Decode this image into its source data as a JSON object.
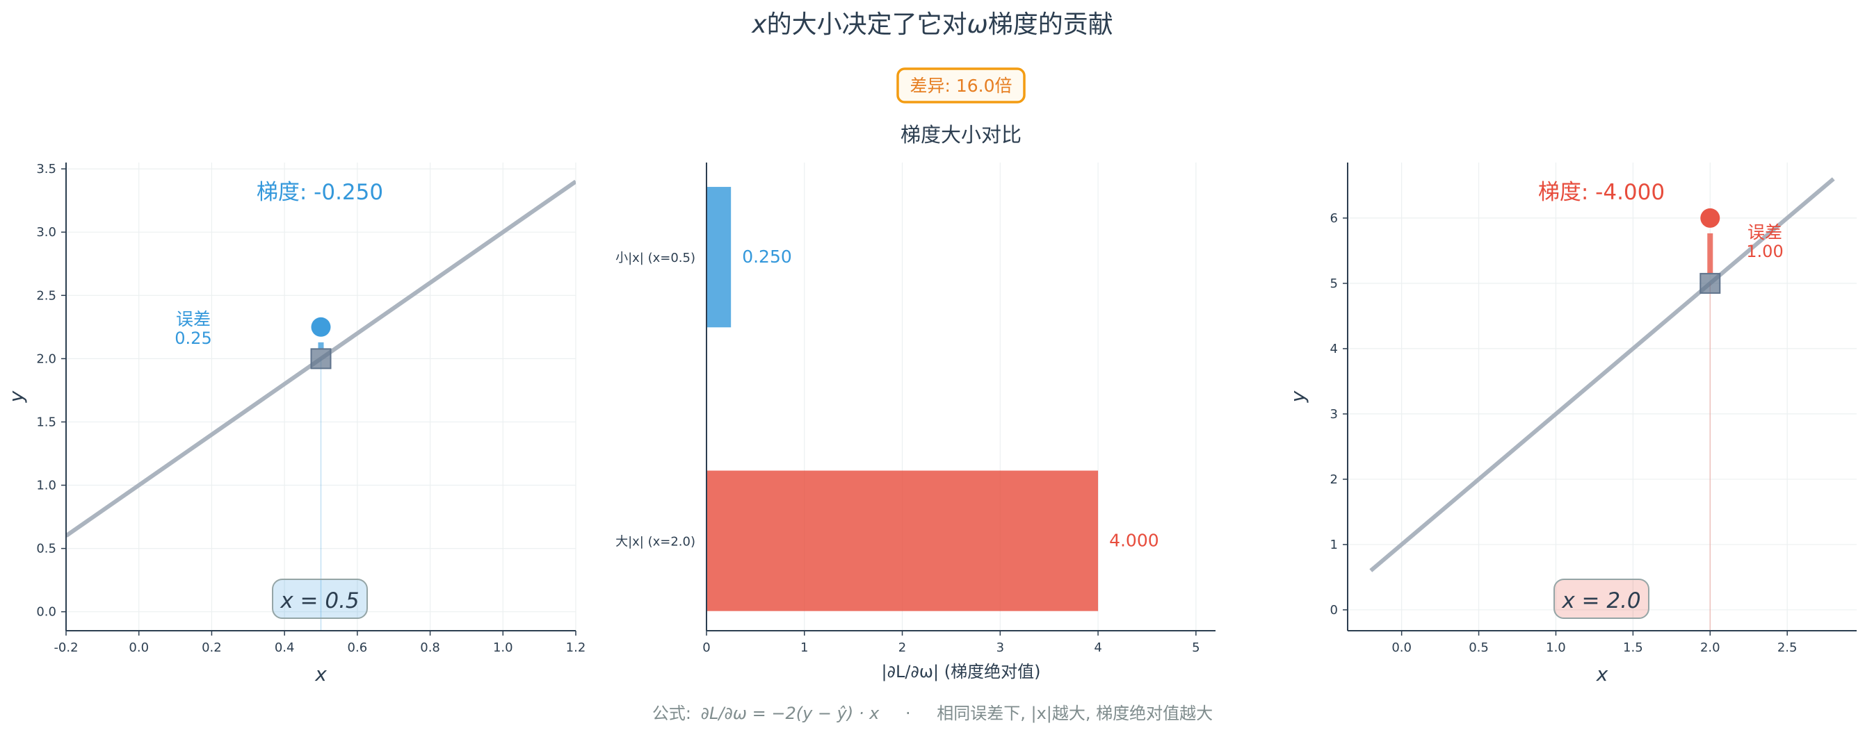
{
  "title": {
    "var_x": "x",
    "part1": "的大小决定了它对",
    "omega": "ω",
    "part2": "梯度的贡献"
  },
  "ratio_badge": "差异: 16.0倍",
  "colors": {
    "blue": "#3498db",
    "red": "#e74c3c",
    "orange": "#f39c12",
    "line_gray": "#abb4bf",
    "point_gray": "#5f738c",
    "text_dark": "#2c3e50",
    "text_muted": "#7f8c8d"
  },
  "chart_data": [
    {
      "type": "scatter",
      "panel": "left",
      "xlabel": "x",
      "ylabel": "y",
      "xlim": [
        -0.2,
        1.2
      ],
      "ylim": [
        -0.15,
        3.55
      ],
      "xticks": [
        "-0.2",
        "0.0",
        "0.2",
        "0.4",
        "0.6",
        "0.8",
        "1.0",
        "1.2"
      ],
      "yticks": [
        "0.0",
        "0.5",
        "1.0",
        "1.5",
        "2.0",
        "2.5",
        "3.0",
        "3.5"
      ],
      "line": {
        "slope": 2,
        "intercept": 1,
        "x_range": [
          -0.2,
          1.2
        ]
      },
      "true_point": {
        "x": 0.5,
        "y": 2.25
      },
      "pred_point": {
        "x": 0.5,
        "y": 2.0
      },
      "gradient_label": "梯度: -0.250",
      "error_label_line1": "误差",
      "error_label_line2": "0.25",
      "x_badge": "x = 0.5",
      "grid": true
    },
    {
      "type": "bar",
      "orientation": "horizontal",
      "panel": "middle",
      "title": "梯度大小对比",
      "categories": [
        "小|x| (x=0.5)",
        "大|x| (x=2.0)"
      ],
      "values": [
        0.25,
        4.0
      ],
      "value_labels": [
        "0.250",
        "4.000"
      ],
      "xlim": [
        0,
        5.2
      ],
      "xticks": [
        "0",
        "1",
        "2",
        "3",
        "4",
        "5"
      ],
      "xlabel": "|∂L/∂ω| (梯度绝对值)",
      "grid": true
    },
    {
      "type": "scatter",
      "panel": "right",
      "xlabel": "x",
      "ylabel": "y",
      "xlim": [
        -0.35,
        2.95
      ],
      "ylim": [
        -0.32,
        6.85
      ],
      "xticks": [
        "0.0",
        "0.5",
        "1.0",
        "1.5",
        "2.0",
        "2.5"
      ],
      "yticks": [
        "0",
        "1",
        "2",
        "3",
        "4",
        "5",
        "6"
      ],
      "line": {
        "slope": 2,
        "intercept": 1,
        "x_range": [
          -0.2,
          2.8
        ]
      },
      "true_point": {
        "x": 2.0,
        "y": 6.0
      },
      "pred_point": {
        "x": 2.0,
        "y": 5.0
      },
      "gradient_label": "梯度: -4.000",
      "error_label_line1": "误差",
      "error_label_line2": "1.00",
      "x_badge": "x = 2.0",
      "grid": true
    }
  ],
  "footer": {
    "formula_prefix": "公式:",
    "formula": "∂L/∂ω = −2(y − ŷ) · x",
    "separator": "·",
    "note": "相同误差下, |x|越大, 梯度绝对值越大"
  }
}
